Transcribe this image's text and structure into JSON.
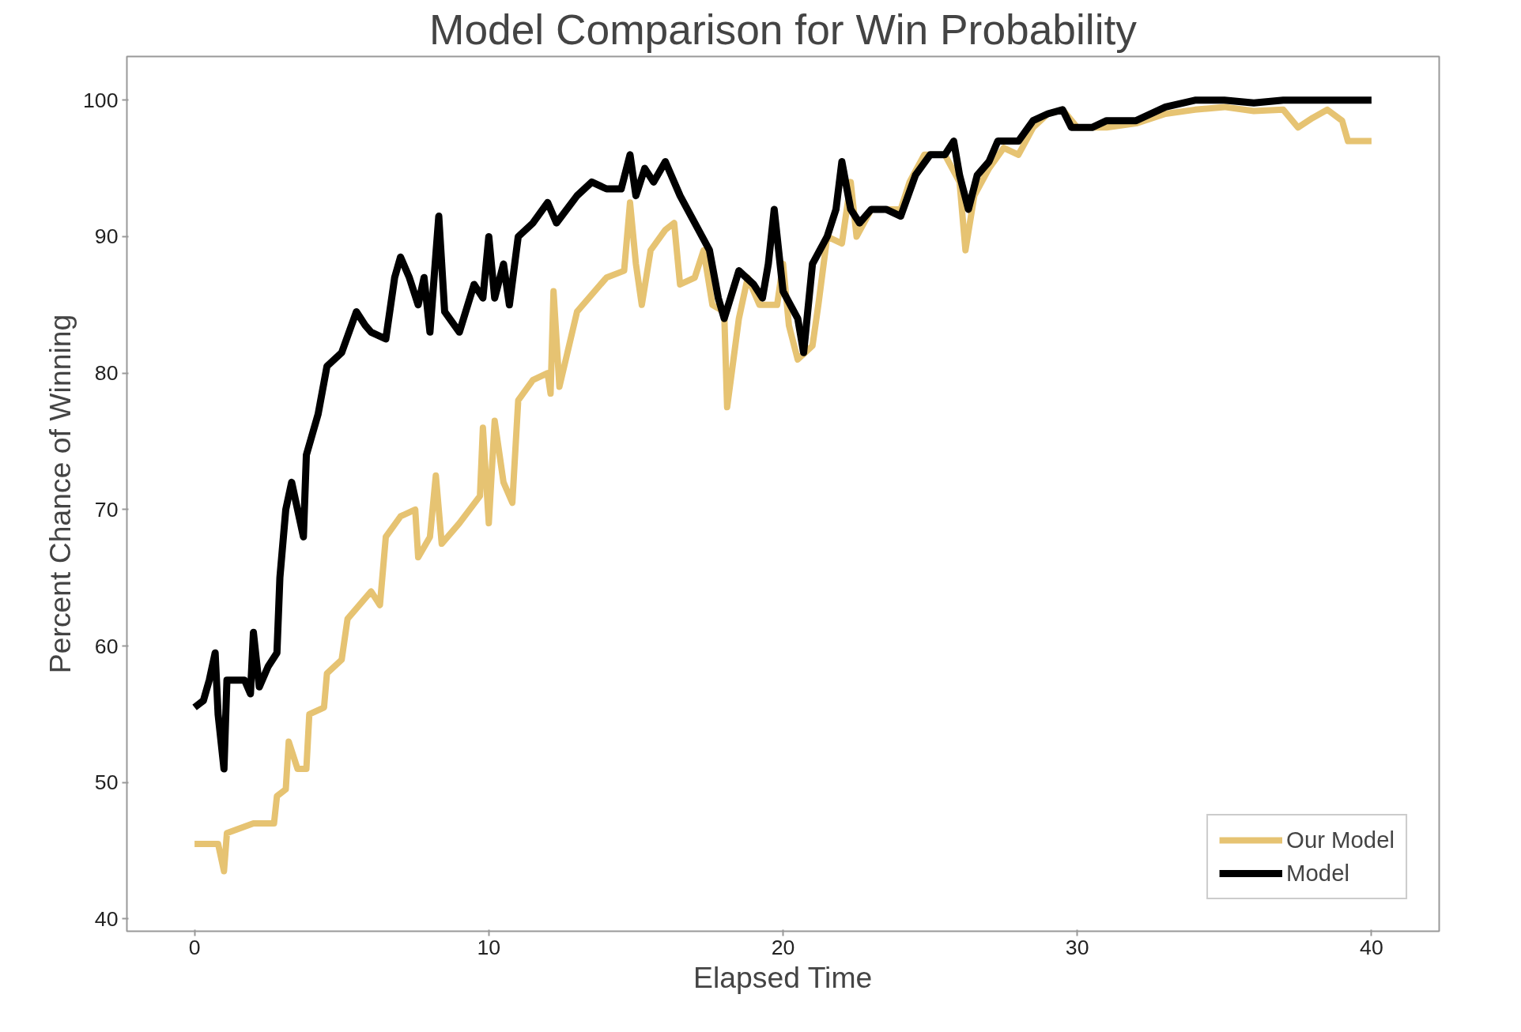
{
  "chart_data": {
    "type": "line",
    "title": "Model Comparison for Win Probability",
    "xlabel": "Elapsed Time",
    "ylabel": "Percent Chance of Winning",
    "xlim": [
      -2.3,
      42.3
    ],
    "ylim": [
      39.1,
      103.2
    ],
    "xticks": [
      0,
      10,
      20,
      30,
      40
    ],
    "yticks": [
      40,
      50,
      60,
      70,
      80,
      90,
      100
    ],
    "grid": false,
    "legend": "bottom right",
    "line_style": "solid",
    "marker": "none",
    "series": [
      {
        "name": "Our Model",
        "color": "#e6c372",
        "x": [
          0,
          0.8,
          1.0,
          1.1,
          2,
          2.7,
          2.8,
          3.1,
          3.2,
          3.5,
          3.8,
          3.9,
          4.4,
          4.5,
          5,
          5.2,
          6,
          6.3,
          6.5,
          7,
          7.5,
          7.6,
          8,
          8.2,
          8.4,
          9,
          9.7,
          9.8,
          10,
          10.2,
          10.5,
          10.8,
          11,
          11.5,
          12,
          12.1,
          12.2,
          12.4,
          13,
          14,
          14.6,
          14.8,
          15,
          15.2,
          15.5,
          16,
          16.3,
          16.5,
          17,
          17.3,
          17.6,
          18,
          18.1,
          18.5,
          18.8,
          19.2,
          19.8,
          20,
          20.2,
          20.5,
          21,
          21.2,
          21.5,
          22,
          22.3,
          22.5,
          23,
          23.5,
          24,
          24.3,
          24.8,
          25.3,
          25.5,
          26,
          26.2,
          26.5,
          27,
          27.5,
          28,
          28.5,
          29,
          29.5,
          30,
          31,
          32,
          33,
          34,
          35,
          36,
          37,
          37.5,
          38,
          38.5,
          39,
          39.2,
          40
        ],
        "values": [
          45.5,
          45.5,
          43.5,
          46.3,
          47,
          47,
          49,
          49.5,
          53,
          51,
          51,
          55,
          55.5,
          58,
          59,
          62,
          64,
          63,
          68,
          69.5,
          70,
          66.5,
          68,
          72.5,
          67.5,
          69,
          71,
          76,
          69,
          76.5,
          72,
          70.5,
          78,
          79.5,
          80,
          78.5,
          86,
          79,
          84.5,
          87,
          87.5,
          92.5,
          88,
          85,
          89,
          90.5,
          91,
          86.5,
          87,
          89,
          85,
          84.5,
          77.5,
          84,
          87,
          85,
          85,
          88,
          83.5,
          81,
          82,
          85,
          90,
          89.5,
          94,
          90,
          92,
          92,
          92,
          94,
          96,
          96,
          96,
          94,
          89,
          93,
          95,
          96.5,
          96,
          98,
          99,
          99.3,
          98,
          98,
          98.3,
          99,
          99.3,
          99.5,
          99.2,
          99.3,
          98,
          98.7,
          99.3,
          98.5,
          97,
          97
        ]
      },
      {
        "name": "Model",
        "color": "#000000",
        "x": [
          0,
          0.3,
          0.5,
          0.7,
          0.8,
          1.0,
          1.1,
          1.7,
          1.9,
          2.0,
          2.2,
          2.5,
          2.8,
          2.9,
          3.1,
          3.3,
          3.5,
          3.7,
          3.8,
          4.2,
          4.5,
          5,
          5.5,
          5.8,
          6,
          6.5,
          6.8,
          7,
          7.3,
          7.6,
          7.8,
          8,
          8.3,
          8.5,
          9,
          9.5,
          9.8,
          10,
          10.2,
          10.5,
          10.7,
          11,
          11.5,
          12,
          12.3,
          13,
          13.5,
          14,
          14.5,
          14.8,
          15,
          15.3,
          15.6,
          16,
          16.5,
          17,
          17.5,
          17.8,
          18,
          18.5,
          19,
          19.3,
          19.5,
          19.7,
          20,
          20.5,
          20.7,
          21,
          21.5,
          21.8,
          22,
          22.3,
          22.6,
          23,
          23.5,
          24,
          24.5,
          25,
          25.5,
          25.8,
          26,
          26.3,
          26.6,
          27,
          27.3,
          28,
          28.5,
          29,
          29.5,
          29.8,
          30.5,
          31,
          32,
          33,
          34,
          35,
          36,
          37,
          38,
          40
        ],
        "values": [
          55.5,
          56,
          57.5,
          59.5,
          55,
          51,
          57.5,
          57.5,
          56.5,
          61,
          57,
          58.5,
          59.5,
          65,
          70,
          72,
          70,
          68,
          74,
          77,
          80.5,
          81.5,
          84.5,
          83.5,
          83,
          82.5,
          87,
          88.5,
          87,
          85,
          87,
          83,
          91.5,
          84.5,
          83,
          86.5,
          85.5,
          90,
          85.5,
          88,
          85,
          90,
          91,
          92.5,
          91,
          93,
          94,
          93.5,
          93.5,
          96,
          93,
          95,
          94,
          95.5,
          93,
          91,
          89,
          85.5,
          84,
          87.5,
          86.5,
          85.5,
          88,
          92,
          86,
          84,
          81.5,
          88,
          90,
          92,
          95.5,
          92,
          91,
          92,
          92,
          91.5,
          94.5,
          96,
          96,
          97,
          94.5,
          92,
          94.5,
          95.5,
          97,
          97,
          98.5,
          99,
          99.3,
          98,
          98,
          98.5,
          98.5,
          99.5,
          100,
          100,
          99.8,
          100,
          100,
          100
        ]
      }
    ]
  }
}
